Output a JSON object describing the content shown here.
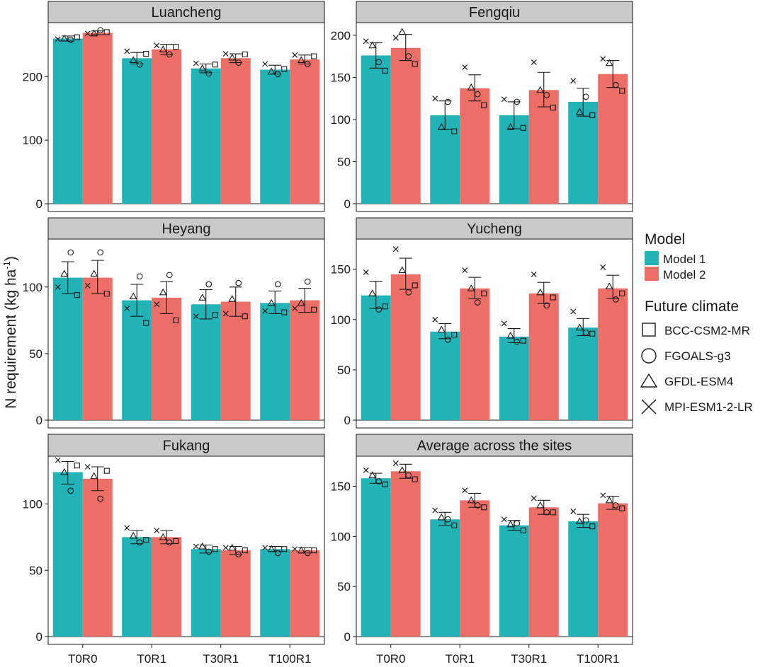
{
  "y_axis_label": "N requirement (kg ha",
  "y_axis_label_sup": "-1",
  "colors": {
    "model1": "#22B3B7",
    "model2": "#EC6E67",
    "strip": "#C9C9C9",
    "text": "#1a1a1a"
  },
  "legend": {
    "model_title": "Model",
    "model_items": [
      "Model 1",
      "Model 2"
    ],
    "climate_title": "Future climate",
    "climate_items": [
      {
        "label": "BCC-CSM2-MR",
        "marker": "square"
      },
      {
        "label": "FGOALS-g3",
        "marker": "circle"
      },
      {
        "label": "GFDL-ESM4",
        "marker": "triangle"
      },
      {
        "label": "MPI-ESM1-2-LR",
        "marker": "cross"
      }
    ]
  },
  "chart_data": [
    {
      "type": "bar",
      "title": "Luancheng",
      "categories": [
        "T0R0",
        "T0R1",
        "T30R1",
        "T100R1"
      ],
      "ylim": [
        0,
        285
      ],
      "yticks": [
        0,
        100,
        200
      ],
      "series": [
        {
          "name": "Model 1",
          "values": [
            260,
            229,
            213,
            211
          ],
          "err_low": [
            256,
            220,
            206,
            204
          ],
          "err_high": [
            264,
            238,
            220,
            218
          ],
          "points": {
            "square": [
              262,
              236,
              219,
              212
            ],
            "circle": [
              258,
              219,
              205,
              204
            ],
            "triangle": [
              260,
              226,
              213,
              208
            ],
            "cross": [
              259,
              240,
              221,
              220
            ]
          }
        },
        {
          "name": "Model 2",
          "values": [
            269,
            243,
            229,
            227
          ],
          "err_low": [
            266,
            235,
            222,
            220
          ],
          "err_high": [
            272,
            251,
            236,
            234
          ],
          "points": {
            "square": [
              270,
              247,
              235,
              232
            ],
            "circle": [
              273,
              235,
              222,
              220
            ],
            "triangle": [
              268,
              243,
              230,
              226
            ],
            "cross": [
              268,
              249,
              236,
              234
            ]
          }
        }
      ]
    },
    {
      "type": "bar",
      "title": "Fengqiu",
      "categories": [
        "T0R0",
        "T0R1",
        "T30R1",
        "T100R1"
      ],
      "ylim": [
        0,
        215
      ],
      "yticks": [
        0,
        50,
        100,
        150,
        200
      ],
      "series": [
        {
          "name": "Model 1",
          "values": [
            176,
            105,
            105,
            121
          ],
          "err_low": [
            161,
            88,
            89,
            104
          ],
          "err_high": [
            191,
            122,
            121,
            137
          ],
          "points": {
            "square": [
              158,
              86,
              90,
              105
            ],
            "circle": [
              168,
              121,
              121,
              127
            ],
            "triangle": [
              188,
              91,
              91,
              109
            ],
            "cross": [
              193,
              125,
              124,
              146
            ]
          }
        },
        {
          "name": "Model 2",
          "values": [
            185,
            137,
            135,
            154
          ],
          "err_low": [
            170,
            122,
            115,
            138
          ],
          "err_high": [
            201,
            153,
            156,
            170
          ],
          "points": {
            "square": [
              166,
              117,
              114,
              134
            ],
            "circle": [
              175,
              130,
              129,
              141
            ],
            "triangle": [
              204,
              138,
              135,
              167
            ],
            "cross": [
              197,
              162,
              168,
              172
            ]
          }
        }
      ]
    },
    {
      "type": "bar",
      "title": "Heyang",
      "categories": [
        "T0R0",
        "T0R1",
        "T30R1",
        "T100R1"
      ],
      "ylim": [
        0,
        136
      ],
      "yticks": [
        0,
        50,
        100
      ],
      "series": [
        {
          "name": "Model 1",
          "values": [
            107,
            90,
            87,
            88
          ],
          "err_low": [
            95,
            78,
            76,
            80
          ],
          "err_high": [
            119,
            102,
            98,
            97
          ],
          "points": {
            "square": [
              94,
              73,
              79,
              81
            ],
            "circle": [
              126,
              108,
              102,
              102
            ],
            "triangle": [
              110,
              93,
              92,
              88
            ],
            "cross": [
              100,
              84,
              78,
              82
            ]
          }
        },
        {
          "name": "Model 2",
          "values": [
            107,
            92,
            89,
            90
          ],
          "err_low": [
            95,
            80,
            78,
            81
          ],
          "err_high": [
            120,
            104,
            100,
            99
          ],
          "points": {
            "square": [
              95,
              75,
              78,
              83
            ],
            "circle": [
              126,
              109,
              103,
              104
            ],
            "triangle": [
              110,
              96,
              91,
              88
            ],
            "cross": [
              101,
              87,
              80,
              84
            ]
          }
        }
      ]
    },
    {
      "type": "bar",
      "title": "Yucheng",
      "categories": [
        "T0R0",
        "T0R1",
        "T30R1",
        "T100R1"
      ],
      "ylim": [
        0,
        180
      ],
      "yticks": [
        0,
        50,
        100,
        150
      ],
      "series": [
        {
          "name": "Model 1",
          "values": [
            124,
            88,
            83,
            92
          ],
          "err_low": [
            111,
            81,
            77,
            84
          ],
          "err_high": [
            138,
            96,
            91,
            101
          ],
          "points": {
            "square": [
              113,
              85,
              79,
              86
            ],
            "circle": [
              110,
              80,
              78,
              87
            ],
            "triangle": [
              126,
              90,
              84,
              92
            ],
            "cross": [
              147,
              100,
              96,
              108
            ]
          }
        },
        {
          "name": "Model 2",
          "values": [
            145,
            131,
            126,
            131
          ],
          "err_low": [
            130,
            121,
            116,
            121
          ],
          "err_high": [
            161,
            142,
            137,
            144
          ],
          "points": {
            "square": [
              134,
              126,
              122,
              126
            ],
            "circle": [
              127,
              117,
              114,
              120
            ],
            "triangle": [
              149,
              131,
              127,
              133
            ],
            "cross": [
              170,
              149,
              145,
              152
            ]
          }
        }
      ]
    },
    {
      "type": "bar",
      "title": "Fukang",
      "categories": [
        "T0R0",
        "T0R1",
        "T30R1",
        "T100R1"
      ],
      "ylim": [
        0,
        136
      ],
      "yticks": [
        0,
        50,
        100
      ],
      "series": [
        {
          "name": "Model 1",
          "values": [
            124,
            75,
            66,
            66
          ],
          "err_low": [
            115,
            70,
            63,
            64
          ],
          "err_high": [
            132,
            80,
            69,
            68
          ],
          "points": {
            "square": [
              129,
              73,
              66,
              66
            ],
            "circle": [
              110,
              71,
              64,
              63
            ],
            "triangle": [
              124,
              76,
              68,
              66
            ],
            "cross": [
              133,
              82,
              68,
              67
            ]
          }
        },
        {
          "name": "Model 2",
          "values": [
            119,
            75,
            65,
            65
          ],
          "err_low": [
            110,
            70,
            62,
            63
          ],
          "err_high": [
            128,
            80,
            68,
            67
          ],
          "points": {
            "square": [
              125,
              72,
              65,
              65
            ],
            "circle": [
              104,
              71,
              62,
              63
            ],
            "triangle": [
              121,
              75,
              67,
              65
            ],
            "cross": [
              128,
              80,
              67,
              66
            ]
          }
        }
      ]
    },
    {
      "type": "bar",
      "title": "Average across the sites",
      "categories": [
        "T0R0",
        "T0R1",
        "T30R1",
        "T100R1"
      ],
      "ylim": [
        0,
        180
      ],
      "yticks": [
        0,
        50,
        100,
        150
      ],
      "series": [
        {
          "name": "Model 1",
          "values": [
            158,
            117,
            111,
            115
          ],
          "err_low": [
            153,
            111,
            106,
            109
          ],
          "err_high": [
            163,
            124,
            116,
            122
          ],
          "points": {
            "square": [
              152,
              111,
              106,
              110
            ],
            "circle": [
              155,
              117,
              113,
              116
            ],
            "triangle": [
              161,
              119,
              112,
              115
            ],
            "cross": [
              166,
              126,
              117,
              125
            ]
          }
        },
        {
          "name": "Model 2",
          "values": [
            165,
            136,
            129,
            133
          ],
          "err_low": [
            158,
            129,
            122,
            127
          ],
          "err_high": [
            172,
            143,
            136,
            140
          ],
          "points": {
            "square": [
              157,
              129,
              124,
              128
            ],
            "circle": [
              161,
              131,
              124,
              131
            ],
            "triangle": [
              166,
              136,
              131,
              136
            ],
            "cross": [
              173,
              146,
              138,
              141
            ]
          }
        }
      ]
    }
  ]
}
